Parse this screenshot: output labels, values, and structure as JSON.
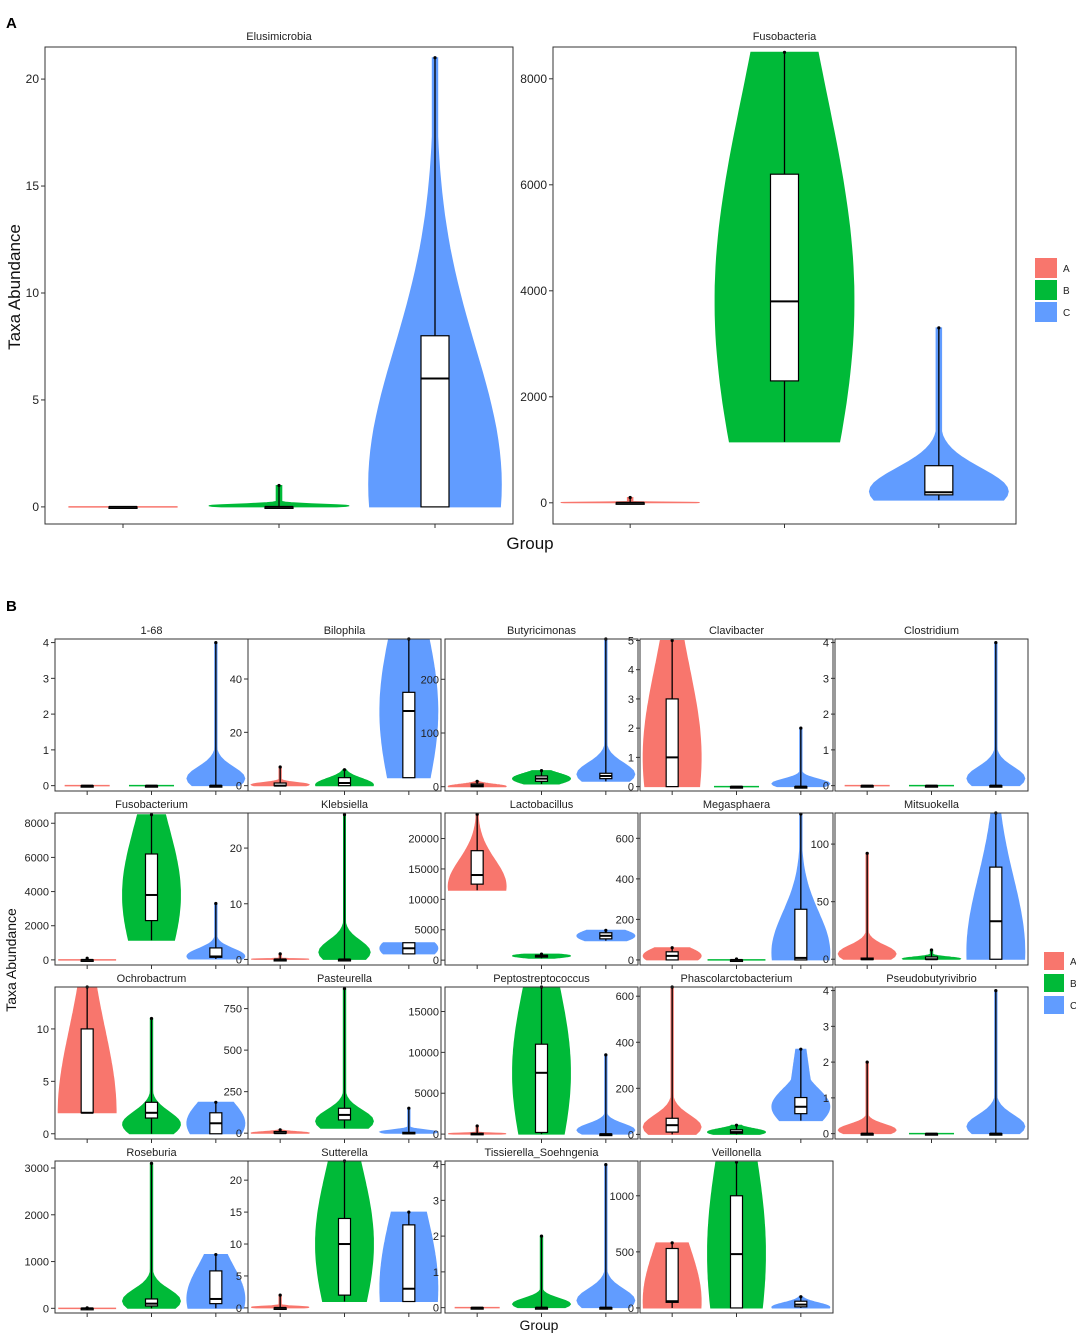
{
  "figure": {
    "panel_a_letter": "A",
    "panel_b_letter": "B",
    "panel_a_xlabel": "Group",
    "panel_a_ylabel": "Taxa Abundance",
    "panel_b_xlabel": "Group",
    "panel_b_ylabel": "Taxa Abundance",
    "legend": [
      {
        "name": "A",
        "color": "#f8766d"
      },
      {
        "name": "B",
        "color": "#00ba38"
      },
      {
        "name": "C",
        "color": "#619cff"
      }
    ]
  },
  "chart_data": [
    {
      "panel": "A",
      "type": "violin",
      "title": "Elusimicrobia",
      "categories": [
        "A",
        "B",
        "C"
      ],
      "ylim": [
        -0.8,
        21.5
      ],
      "yticks": [
        0,
        5,
        10,
        15,
        20
      ],
      "series": [
        {
          "name": "A",
          "min": 0,
          "q1": 0,
          "median": 0,
          "q3": 0,
          "max": 0,
          "density_bias": "low",
          "width": 0.7
        },
        {
          "name": "B",
          "min": 0,
          "q1": 0,
          "median": 0,
          "q3": 0,
          "max": 1,
          "density_bias": "low",
          "width": 0.9
        },
        {
          "name": "C",
          "min": 0,
          "q1": 0,
          "median": 6,
          "q3": 8,
          "max": 21,
          "density_bias": "low",
          "width": 0.85
        }
      ]
    },
    {
      "panel": "A",
      "type": "violin",
      "title": "Fusobacteria",
      "categories": [
        "A",
        "B",
        "C"
      ],
      "ylim": [
        -400,
        8600
      ],
      "yticks": [
        0,
        2000,
        4000,
        6000,
        8000
      ],
      "series": [
        {
          "name": "A",
          "min": 0,
          "q1": 0,
          "median": 0,
          "q3": 0,
          "max": 100,
          "density_bias": "low",
          "width": 0.9
        },
        {
          "name": "B",
          "min": 1150,
          "q1": 2300,
          "median": 3800,
          "q3": 6200,
          "max": 8500,
          "density_bias": "mid",
          "width": 0.9
        },
        {
          "name": "C",
          "min": 50,
          "q1": 150,
          "median": 200,
          "q3": 700,
          "max": 3300,
          "density_bias": "low",
          "width": 0.9
        }
      ]
    },
    {
      "panel": "B",
      "type": "violin",
      "title": "1-68",
      "categories": [
        "A",
        "B",
        "C"
      ],
      "ylim": [
        -0.15,
        4.1
      ],
      "yticks": [
        0,
        1,
        2,
        3,
        4
      ],
      "series": [
        {
          "name": "A",
          "min": 0,
          "q1": 0,
          "median": 0,
          "q3": 0,
          "max": 0,
          "density_bias": "low",
          "width": 0.7
        },
        {
          "name": "B",
          "min": 0,
          "q1": 0,
          "median": 0,
          "q3": 0,
          "max": 0,
          "density_bias": "low",
          "width": 0.7
        },
        {
          "name": "C",
          "min": 0,
          "q1": 0,
          "median": 0,
          "q3": 0,
          "max": 4,
          "density_bias": "low",
          "width": 0.9
        }
      ]
    },
    {
      "panel": "B",
      "type": "violin",
      "title": "Bilophila",
      "categories": [
        "A",
        "B",
        "C"
      ],
      "ylim": [
        -2,
        55
      ],
      "yticks": [
        0,
        20,
        40
      ],
      "series": [
        {
          "name": "A",
          "min": 0,
          "q1": 0,
          "median": 0,
          "q3": 1,
          "max": 7,
          "density_bias": "low",
          "width": 0.9
        },
        {
          "name": "B",
          "min": 0,
          "q1": 0,
          "median": 1,
          "q3": 3,
          "max": 6,
          "density_bias": "low",
          "width": 0.9
        },
        {
          "name": "C",
          "min": 3,
          "q1": 3,
          "median": 28,
          "q3": 35,
          "max": 55,
          "density_bias": "mid",
          "width": 0.9
        }
      ]
    },
    {
      "panel": "B",
      "type": "violin",
      "title": "Butyricimonas",
      "categories": [
        "A",
        "B",
        "C"
      ],
      "ylim": [
        -8,
        275
      ],
      "yticks": [
        0,
        100,
        200
      ],
      "series": [
        {
          "name": "A",
          "min": 0,
          "q1": 0,
          "median": 2,
          "q3": 5,
          "max": 10,
          "density_bias": "low",
          "width": 0.9
        },
        {
          "name": "B",
          "min": 5,
          "q1": 10,
          "median": 15,
          "q3": 20,
          "max": 30,
          "density_bias": "mid",
          "width": 0.9
        },
        {
          "name": "C",
          "min": 10,
          "q1": 15,
          "median": 20,
          "q3": 25,
          "max": 275,
          "density_bias": "low",
          "width": 0.9
        }
      ]
    },
    {
      "panel": "B",
      "type": "violin",
      "title": "Clavibacter",
      "categories": [
        "A",
        "B",
        "C"
      ],
      "ylim": [
        -0.15,
        5.05
      ],
      "yticks": [
        0,
        1,
        2,
        3,
        4,
        5
      ],
      "series": [
        {
          "name": "A",
          "min": 0,
          "q1": 0,
          "median": 1,
          "q3": 3,
          "max": 5,
          "density_bias": "mid",
          "width": 0.9
        },
        {
          "name": "B",
          "min": 0,
          "q1": 0,
          "median": 0,
          "q3": 0,
          "max": 0,
          "density_bias": "low",
          "width": 0.7
        },
        {
          "name": "C",
          "min": 0,
          "q1": 0,
          "median": 0,
          "q3": 0,
          "max": 2,
          "density_bias": "low",
          "width": 0.9
        }
      ]
    },
    {
      "panel": "B",
      "type": "violin",
      "title": "Clostridium",
      "categories": [
        "A",
        "B",
        "C"
      ],
      "ylim": [
        -0.15,
        4.1
      ],
      "yticks": [
        0,
        1,
        2,
        3,
        4
      ],
      "series": [
        {
          "name": "A",
          "min": 0,
          "q1": 0,
          "median": 0,
          "q3": 0,
          "max": 0,
          "density_bias": "low",
          "width": 0.7
        },
        {
          "name": "B",
          "min": 0,
          "q1": 0,
          "median": 0,
          "q3": 0,
          "max": 0,
          "density_bias": "low",
          "width": 0.7
        },
        {
          "name": "C",
          "min": 0,
          "q1": 0,
          "median": 0,
          "q3": 0,
          "max": 4,
          "density_bias": "low",
          "width": 0.9
        }
      ]
    },
    {
      "panel": "B",
      "type": "violin",
      "title": "Fusobacterium",
      "categories": [
        "A",
        "B",
        "C"
      ],
      "ylim": [
        -300,
        8600
      ],
      "yticks": [
        0,
        2000,
        4000,
        6000,
        8000
      ],
      "series": [
        {
          "name": "A",
          "min": 0,
          "q1": 0,
          "median": 0,
          "q3": 0,
          "max": 100,
          "density_bias": "low",
          "width": 0.9
        },
        {
          "name": "B",
          "min": 1150,
          "q1": 2300,
          "median": 3800,
          "q3": 6200,
          "max": 8500,
          "density_bias": "mid",
          "width": 0.9
        },
        {
          "name": "C",
          "min": 50,
          "q1": 150,
          "median": 200,
          "q3": 700,
          "max": 3300,
          "density_bias": "low",
          "width": 0.9
        }
      ]
    },
    {
      "panel": "B",
      "type": "violin",
      "title": "Klebsiella",
      "categories": [
        "A",
        "B",
        "C"
      ],
      "ylim": [
        -1,
        26.3
      ],
      "yticks": [
        0,
        10,
        20
      ],
      "series": [
        {
          "name": "A",
          "min": 0,
          "q1": 0,
          "median": 0,
          "q3": 0,
          "max": 1,
          "density_bias": "low",
          "width": 0.9
        },
        {
          "name": "B",
          "min": 0,
          "q1": 0,
          "median": 0,
          "q3": 0,
          "max": 26,
          "density_bias": "low",
          "width": 0.8
        },
        {
          "name": "C",
          "min": 1,
          "q1": 1,
          "median": 2,
          "q3": 3,
          "max": 3,
          "density_bias": "mid",
          "width": 0.9
        }
      ]
    },
    {
      "panel": "B",
      "type": "violin",
      "title": "Lactobacillus",
      "categories": [
        "A",
        "B",
        "C"
      ],
      "ylim": [
        -800,
        24200
      ],
      "yticks": [
        0,
        5000,
        10000,
        15000,
        20000,
        25000
      ],
      "series": [
        {
          "name": "A",
          "min": 11500,
          "q1": 12500,
          "median": 14000,
          "q3": 18000,
          "max": 24000,
          "density_bias": "low",
          "width": 0.9
        },
        {
          "name": "B",
          "min": 300,
          "q1": 500,
          "median": 700,
          "q3": 800,
          "max": 1000,
          "density_bias": "mid",
          "width": 0.9
        },
        {
          "name": "C",
          "min": 3200,
          "q1": 3500,
          "median": 4000,
          "q3": 4500,
          "max": 4900,
          "density_bias": "mid",
          "width": 0.9
        }
      ]
    },
    {
      "panel": "B",
      "type": "violin",
      "title": "Megasphaera",
      "categories": [
        "A",
        "B",
        "C"
      ],
      "ylim": [
        -25,
        725
      ],
      "yticks": [
        0,
        200,
        400,
        600
      ],
      "series": [
        {
          "name": "A",
          "min": 0,
          "q1": 0,
          "median": 20,
          "q3": 40,
          "max": 60,
          "density_bias": "mid",
          "width": 0.9
        },
        {
          "name": "B",
          "min": 0,
          "q1": 0,
          "median": 0,
          "q3": 0,
          "max": 5,
          "density_bias": "low",
          "width": 0.9
        },
        {
          "name": "C",
          "min": 0,
          "q1": 0,
          "median": 10,
          "q3": 250,
          "max": 720,
          "density_bias": "low",
          "width": 0.9
        }
      ]
    },
    {
      "panel": "B",
      "type": "violin",
      "title": "Mitsuokella",
      "categories": [
        "A",
        "B",
        "C"
      ],
      "ylim": [
        -5,
        127
      ],
      "yticks": [
        0,
        50,
        100
      ],
      "series": [
        {
          "name": "A",
          "min": 0,
          "q1": 0,
          "median": 0,
          "q3": 1,
          "max": 92,
          "density_bias": "low",
          "width": 0.9
        },
        {
          "name": "B",
          "min": 0,
          "q1": 0,
          "median": 0,
          "q3": 2,
          "max": 8,
          "density_bias": "low",
          "width": 0.9
        },
        {
          "name": "C",
          "min": 0,
          "q1": 0,
          "median": 33,
          "q3": 80,
          "max": 127,
          "density_bias": "low",
          "width": 0.9
        }
      ]
    },
    {
      "panel": "B",
      "type": "violin",
      "title": "Ochrobactrum",
      "categories": [
        "A",
        "B",
        "C"
      ],
      "ylim": [
        -0.5,
        14
      ],
      "yticks": [
        0,
        5,
        10
      ],
      "series": [
        {
          "name": "A",
          "min": 2,
          "q1": 2,
          "median": 2,
          "q3": 10,
          "max": 14,
          "density_bias": "mid",
          "width": 0.9
        },
        {
          "name": "B",
          "min": 0,
          "q1": 1.5,
          "median": 2,
          "q3": 3,
          "max": 11,
          "density_bias": "low",
          "width": 0.9
        },
        {
          "name": "C",
          "min": 0,
          "q1": 0,
          "median": 1,
          "q3": 2,
          "max": 3,
          "density_bias": "mid",
          "width": 0.9
        }
      ]
    },
    {
      "panel": "B",
      "type": "violin",
      "title": "Pasteurella",
      "categories": [
        "A",
        "B",
        "C"
      ],
      "ylim": [
        -35,
        880
      ],
      "yticks": [
        0,
        250,
        500,
        750
      ],
      "series": [
        {
          "name": "A",
          "min": 0,
          "q1": 0,
          "median": 0,
          "q3": 10,
          "max": 20,
          "density_bias": "low",
          "width": 0.9
        },
        {
          "name": "B",
          "min": 30,
          "q1": 80,
          "median": 110,
          "q3": 150,
          "max": 870,
          "density_bias": "low",
          "width": 0.9
        },
        {
          "name": "C",
          "min": 0,
          "q1": 0,
          "median": 0,
          "q3": 5,
          "max": 150,
          "density_bias": "low",
          "width": 0.9
        }
      ]
    },
    {
      "panel": "B",
      "type": "violin",
      "title": "Peptostreptococcus",
      "categories": [
        "A",
        "B",
        "C"
      ],
      "ylim": [
        -600,
        18000
      ],
      "yticks": [
        0,
        5000,
        10000,
        15000
      ],
      "series": [
        {
          "name": "A",
          "min": 0,
          "q1": 0,
          "median": 0,
          "q3": 100,
          "max": 1000,
          "density_bias": "low",
          "width": 0.9
        },
        {
          "name": "B",
          "min": 0,
          "q1": 200,
          "median": 7500,
          "q3": 11000,
          "max": 18000,
          "density_bias": "mid",
          "width": 0.9
        },
        {
          "name": "C",
          "min": 0,
          "q1": 0,
          "median": 0,
          "q3": 0,
          "max": 9700,
          "density_bias": "low",
          "width": 0.9
        }
      ]
    },
    {
      "panel": "B",
      "type": "violin",
      "title": "Phascolarctobacterium",
      "categories": [
        "A",
        "B",
        "C"
      ],
      "ylim": [
        -20,
        640
      ],
      "yticks": [
        0,
        200,
        400,
        600
      ],
      "series": [
        {
          "name": "A",
          "min": 0,
          "q1": 10,
          "median": 40,
          "q3": 70,
          "max": 640,
          "density_bias": "low",
          "width": 0.9
        },
        {
          "name": "B",
          "min": 0,
          "q1": 5,
          "median": 10,
          "q3": 20,
          "max": 40,
          "density_bias": "mid",
          "width": 0.9
        },
        {
          "name": "C",
          "min": 60,
          "q1": 90,
          "median": 120,
          "q3": 160,
          "max": 370,
          "density_bias": "mid",
          "width": 0.9
        }
      ]
    },
    {
      "panel": "B",
      "type": "violin",
      "title": "Pseudobutyrivibrio",
      "categories": [
        "A",
        "B",
        "C"
      ],
      "ylim": [
        -0.15,
        4.1
      ],
      "yticks": [
        0,
        1,
        2,
        3,
        4
      ],
      "series": [
        {
          "name": "A",
          "min": 0,
          "q1": 0,
          "median": 0,
          "q3": 0,
          "max": 2,
          "density_bias": "low",
          "width": 0.9
        },
        {
          "name": "B",
          "min": 0,
          "q1": 0,
          "median": 0,
          "q3": 0,
          "max": 0,
          "density_bias": "low",
          "width": 0.7
        },
        {
          "name": "C",
          "min": 0,
          "q1": 0,
          "median": 0,
          "q3": 0,
          "max": 4,
          "density_bias": "low",
          "width": 0.9
        }
      ]
    },
    {
      "panel": "B",
      "type": "violin",
      "title": "Roseburia",
      "categories": [
        "A",
        "B",
        "C"
      ],
      "ylim": [
        -100,
        3150
      ],
      "yticks": [
        0,
        1000,
        2000,
        3000
      ],
      "series": [
        {
          "name": "A",
          "min": 0,
          "q1": 0,
          "median": 0,
          "q3": 0,
          "max": 10,
          "density_bias": "low",
          "width": 0.9
        },
        {
          "name": "B",
          "min": 0,
          "q1": 50,
          "median": 100,
          "q3": 200,
          "max": 3100,
          "density_bias": "low",
          "width": 0.9
        },
        {
          "name": "C",
          "min": 0,
          "q1": 100,
          "median": 200,
          "q3": 800,
          "max": 1150,
          "density_bias": "mid",
          "width": 0.9
        }
      ]
    },
    {
      "panel": "B",
      "type": "violin",
      "title": "Sutterella",
      "categories": [
        "A",
        "B",
        "C"
      ],
      "ylim": [
        -0.8,
        23
      ],
      "yticks": [
        0,
        5,
        10,
        15,
        20
      ],
      "series": [
        {
          "name": "A",
          "min": 0,
          "q1": 0,
          "median": 0,
          "q3": 0,
          "max": 2,
          "density_bias": "low",
          "width": 0.9
        },
        {
          "name": "B",
          "min": 1,
          "q1": 2,
          "median": 10,
          "q3": 14,
          "max": 23,
          "density_bias": "mid",
          "width": 0.9
        },
        {
          "name": "C",
          "min": 1,
          "q1": 1,
          "median": 3,
          "q3": 13,
          "max": 15,
          "density_bias": "mid",
          "width": 0.9
        }
      ]
    },
    {
      "panel": "B",
      "type": "violin",
      "title": "Tissierella_Soehngenia",
      "categories": [
        "A",
        "B",
        "C"
      ],
      "ylim": [
        -0.15,
        4.1
      ],
      "yticks": [
        0,
        1,
        2,
        3,
        4
      ],
      "series": [
        {
          "name": "A",
          "min": 0,
          "q1": 0,
          "median": 0,
          "q3": 0,
          "max": 0,
          "density_bias": "low",
          "width": 0.7
        },
        {
          "name": "B",
          "min": 0,
          "q1": 0,
          "median": 0,
          "q3": 0,
          "max": 2,
          "density_bias": "low",
          "width": 0.9
        },
        {
          "name": "C",
          "min": 0,
          "q1": 0,
          "median": 0,
          "q3": 0,
          "max": 4,
          "density_bias": "low",
          "width": 0.9
        }
      ]
    },
    {
      "panel": "B",
      "type": "violin",
      "title": "Veillonella",
      "categories": [
        "A",
        "B",
        "C"
      ],
      "ylim": [
        -45,
        1310
      ],
      "yticks": [
        0,
        500,
        1000
      ],
      "series": [
        {
          "name": "A",
          "min": 0,
          "q1": 50,
          "median": 60,
          "q3": 530,
          "max": 580,
          "density_bias": "mid",
          "width": 0.9
        },
        {
          "name": "B",
          "min": 0,
          "q1": 0,
          "median": 480,
          "q3": 1000,
          "max": 1300,
          "density_bias": "mid",
          "width": 0.9
        },
        {
          "name": "C",
          "min": 0,
          "q1": 10,
          "median": 30,
          "q3": 60,
          "max": 100,
          "density_bias": "low",
          "width": 0.9
        }
      ]
    }
  ]
}
